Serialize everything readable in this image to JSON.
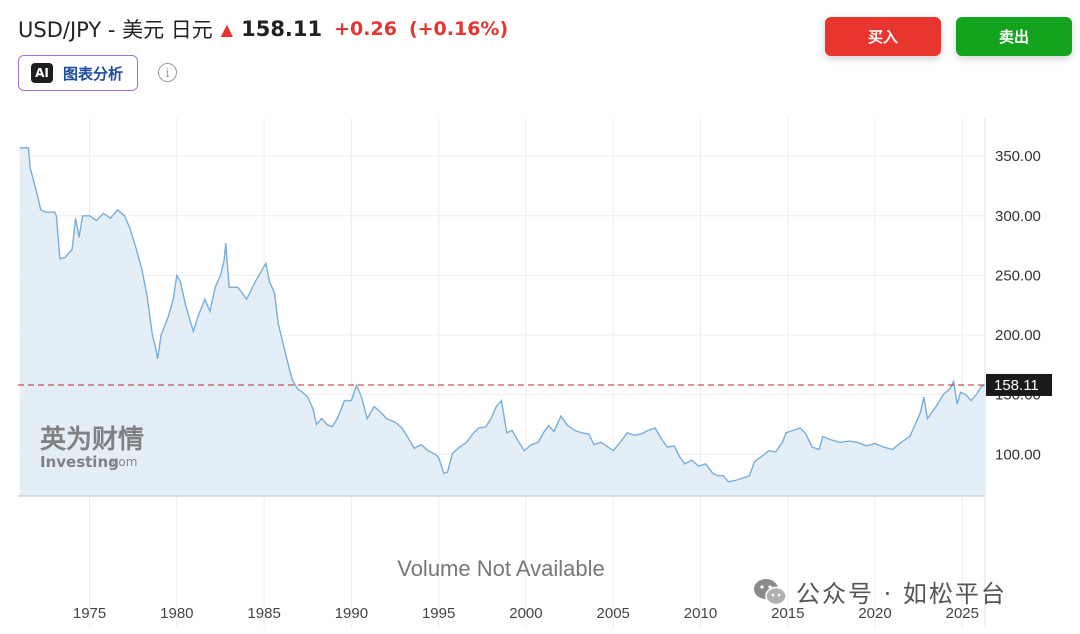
{
  "header": {
    "pair": "USD/JPY - 美元 日元",
    "price": "158.11",
    "change": "+0.26",
    "change_pct": "(+0.16%)",
    "direction_icon": "arrow-up-icon"
  },
  "ai_chip": {
    "badge": "AI",
    "label": "图表分析"
  },
  "info_icon": "i",
  "buttons": {
    "buy": "买入",
    "sell": "卖出"
  },
  "colors": {
    "up": "#e53530",
    "buy": "#e8362f",
    "sell": "#14a31e",
    "line": "#7aaed8",
    "fill": "#e4eef7"
  },
  "chart_data": {
    "type": "area",
    "xlabel": "",
    "ylabel": "",
    "x_ticks": [
      "1975",
      "1980",
      "1985",
      "1990",
      "1995",
      "2000",
      "2005",
      "2010",
      "2015",
      "2020",
      "2025"
    ],
    "y_ticks": [
      "100.00",
      "150.00",
      "200.00",
      "250.00",
      "300.00",
      "350.00"
    ],
    "ylim": [
      65,
      382
    ],
    "xlim": [
      1970.9,
      2026.3
    ],
    "current_price_label": "158.11",
    "current_price": 158.11,
    "volume_label": "Volume Not Available",
    "series": [
      {
        "points": [
          [
            1971.0,
            357
          ],
          [
            1971.5,
            357
          ],
          [
            1971.6,
            340
          ],
          [
            1972.0,
            318
          ],
          [
            1972.2,
            305
          ],
          [
            1972.5,
            303
          ],
          [
            1973.0,
            303
          ],
          [
            1973.1,
            300
          ],
          [
            1973.3,
            264
          ],
          [
            1973.6,
            265
          ],
          [
            1974.0,
            272
          ],
          [
            1974.2,
            298
          ],
          [
            1974.4,
            282
          ],
          [
            1974.6,
            300
          ],
          [
            1975.0,
            300
          ],
          [
            1975.4,
            296
          ],
          [
            1975.8,
            302
          ],
          [
            1976.2,
            298
          ],
          [
            1976.6,
            305
          ],
          [
            1977.0,
            300
          ],
          [
            1977.3,
            290
          ],
          [
            1977.6,
            276
          ],
          [
            1978.0,
            255
          ],
          [
            1978.3,
            232
          ],
          [
            1978.6,
            200
          ],
          [
            1978.8,
            188
          ],
          [
            1978.9,
            180
          ],
          [
            1979.1,
            200
          ],
          [
            1979.5,
            215
          ],
          [
            1979.8,
            230
          ],
          [
            1980.0,
            250
          ],
          [
            1980.2,
            245
          ],
          [
            1980.5,
            225
          ],
          [
            1980.8,
            210
          ],
          [
            1980.95,
            203
          ],
          [
            1981.2,
            215
          ],
          [
            1981.6,
            230
          ],
          [
            1981.9,
            220
          ],
          [
            1982.2,
            240
          ],
          [
            1982.5,
            250
          ],
          [
            1982.7,
            262
          ],
          [
            1982.8,
            277
          ],
          [
            1983.0,
            240
          ],
          [
            1983.5,
            240
          ],
          [
            1984.0,
            230
          ],
          [
            1984.5,
            245
          ],
          [
            1984.9,
            255
          ],
          [
            1985.1,
            260
          ],
          [
            1985.3,
            245
          ],
          [
            1985.6,
            235
          ],
          [
            1985.8,
            210
          ],
          [
            1986.0,
            198
          ],
          [
            1986.3,
            180
          ],
          [
            1986.6,
            163
          ],
          [
            1986.9,
            155
          ],
          [
            1987.2,
            152
          ],
          [
            1987.5,
            148
          ],
          [
            1987.8,
            138
          ],
          [
            1988.0,
            125
          ],
          [
            1988.3,
            130
          ],
          [
            1988.6,
            125
          ],
          [
            1988.9,
            123
          ],
          [
            1989.2,
            130
          ],
          [
            1989.6,
            145
          ],
          [
            1990.0,
            145
          ],
          [
            1990.3,
            158
          ],
          [
            1990.6,
            147
          ],
          [
            1990.9,
            130
          ],
          [
            1991.3,
            140
          ],
          [
            1991.7,
            135
          ],
          [
            1992.0,
            130
          ],
          [
            1992.5,
            127
          ],
          [
            1992.9,
            122
          ],
          [
            1993.2,
            115
          ],
          [
            1993.6,
            105
          ],
          [
            1994.0,
            108
          ],
          [
            1994.4,
            103
          ],
          [
            1994.8,
            100
          ],
          [
            1995.0,
            97
          ],
          [
            1995.3,
            84
          ],
          [
            1995.5,
            85
          ],
          [
            1995.8,
            101
          ],
          [
            1996.2,
            106
          ],
          [
            1996.6,
            110
          ],
          [
            1997.0,
            118
          ],
          [
            1997.3,
            122
          ],
          [
            1997.7,
            123
          ],
          [
            1998.0,
            130
          ],
          [
            1998.3,
            140
          ],
          [
            1998.6,
            145
          ],
          [
            1998.9,
            118
          ],
          [
            1999.2,
            120
          ],
          [
            1999.6,
            110
          ],
          [
            1999.9,
            103
          ],
          [
            2000.3,
            108
          ],
          [
            2000.7,
            110
          ],
          [
            2001.0,
            118
          ],
          [
            2001.3,
            124
          ],
          [
            2001.6,
            119
          ],
          [
            2002.0,
            132
          ],
          [
            2002.4,
            124
          ],
          [
            2002.8,
            120
          ],
          [
            2003.2,
            118
          ],
          [
            2003.6,
            117
          ],
          [
            2003.9,
            108
          ],
          [
            2004.3,
            110
          ],
          [
            2004.7,
            106
          ],
          [
            2005.0,
            103
          ],
          [
            2005.4,
            110
          ],
          [
            2005.8,
            118
          ],
          [
            2006.2,
            116
          ],
          [
            2006.6,
            117
          ],
          [
            2007.0,
            120
          ],
          [
            2007.4,
            122
          ],
          [
            2007.8,
            112
          ],
          [
            2008.1,
            106
          ],
          [
            2008.5,
            107
          ],
          [
            2008.8,
            98
          ],
          [
            2009.1,
            92
          ],
          [
            2009.5,
            95
          ],
          [
            2009.9,
            90
          ],
          [
            2010.3,
            92
          ],
          [
            2010.7,
            84
          ],
          [
            2011.0,
            82
          ],
          [
            2011.3,
            82
          ],
          [
            2011.6,
            77
          ],
          [
            2012.0,
            78
          ],
          [
            2012.4,
            80
          ],
          [
            2012.8,
            82
          ],
          [
            2013.1,
            94
          ],
          [
            2013.5,
            98
          ],
          [
            2013.9,
            103
          ],
          [
            2014.3,
            102
          ],
          [
            2014.7,
            110
          ],
          [
            2014.9,
            118
          ],
          [
            2015.3,
            120
          ],
          [
            2015.7,
            122
          ],
          [
            2016.0,
            118
          ],
          [
            2016.4,
            106
          ],
          [
            2016.8,
            104
          ],
          [
            2017.0,
            115
          ],
          [
            2017.5,
            112
          ],
          [
            2018.0,
            110
          ],
          [
            2018.5,
            111
          ],
          [
            2019.0,
            110
          ],
          [
            2019.5,
            107
          ],
          [
            2020.0,
            109
          ],
          [
            2020.5,
            106
          ],
          [
            2021.0,
            104
          ],
          [
            2021.5,
            110
          ],
          [
            2022.0,
            115
          ],
          [
            2022.3,
            125
          ],
          [
            2022.6,
            135
          ],
          [
            2022.8,
            148
          ],
          [
            2023.0,
            130
          ],
          [
            2023.5,
            140
          ],
          [
            2023.9,
            150
          ],
          [
            2024.3,
            155
          ],
          [
            2024.5,
            161
          ],
          [
            2024.7,
            142
          ],
          [
            2024.9,
            152
          ],
          [
            2025.2,
            150
          ],
          [
            2025.5,
            145
          ],
          [
            2025.8,
            150
          ],
          [
            2026.1,
            157
          ],
          [
            2026.3,
            158
          ]
        ]
      }
    ]
  },
  "watermark": {
    "cn": "英为财情",
    "brand": "Investing",
    "suffix": ".com"
  },
  "wechat": {
    "text": "公众号 · 如松平台"
  }
}
